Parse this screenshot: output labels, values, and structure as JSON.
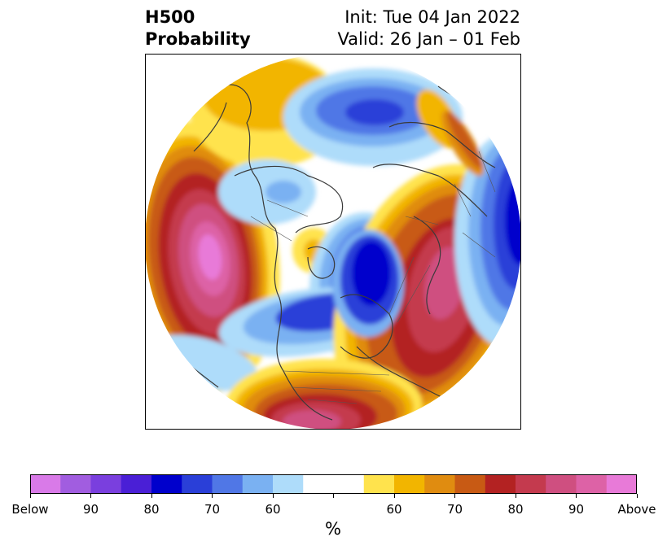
{
  "title": {
    "left_line1": "H500",
    "left_line2": "Probability",
    "right_line1": "Init: Tue 04 Jan 2022",
    "right_line2": "Valid: 26 Jan – 01 Feb"
  },
  "colorbar": {
    "colors": [
      "#d97ae8",
      "#a15de0",
      "#7a3fde",
      "#4a1fd6",
      "#0000cc",
      "#2a3fd8",
      "#5077e6",
      "#7ab1f2",
      "#aedcfa",
      "#ffffff",
      "#ffffff",
      "#ffe34d",
      "#f2b500",
      "#e08c10",
      "#c85a14",
      "#b32222",
      "#c43a4e",
      "#cf4f80",
      "#dd62a6",
      "#e87ad8"
    ],
    "tick_labels": [
      "Below",
      "90",
      "80",
      "70",
      "60",
      "",
      "60",
      "70",
      "80",
      "90",
      "Above"
    ],
    "units": "%"
  }
}
